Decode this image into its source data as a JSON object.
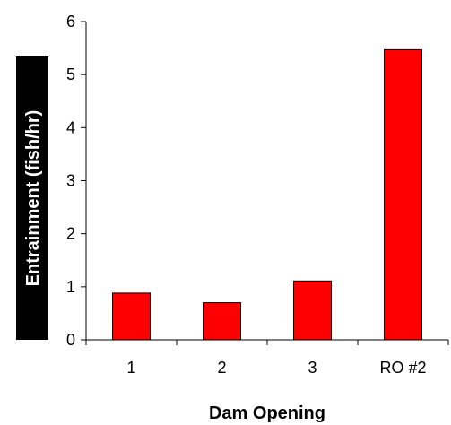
{
  "chart_data": {
    "type": "bar",
    "title": "",
    "xlabel": "Dam Opening",
    "ylabel": "Entrainment (fish/hr)",
    "categories": [
      "1",
      "2",
      "3",
      "RO #2"
    ],
    "values": [
      0.88,
      0.7,
      1.11,
      5.47
    ],
    "ylim": [
      0,
      6
    ],
    "yticks": [
      "0",
      "1",
      "2",
      "3",
      "4",
      "5",
      "6"
    ],
    "grid": false,
    "legend": "none",
    "colors": {
      "bar_fill": "#ff0000",
      "bar_stroke": "#000000",
      "axis": "#000000",
      "ylabel_bg": "#000000",
      "ylabel_text": "#ffffff",
      "xlabel_text": "#000000"
    }
  }
}
